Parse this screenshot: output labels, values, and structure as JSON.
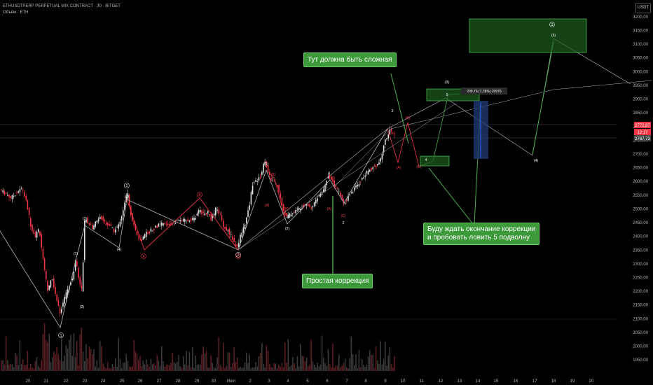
{
  "header": {
    "symbol_line": "ETHUSDTPERP PERPETUAL MIX CONTRACT · 30 · BITGET",
    "volume_line": "Объём · ETH",
    "currency_button": "USDT"
  },
  "price_labels": {
    "upper": "2772,87",
    "middle": "12:17",
    "lower": "2767,73"
  },
  "measure_label": "209,76 (7,78%) 20976",
  "callouts": {
    "complex": "Тут должна быть сложная",
    "simple": "Простая коррекция",
    "wait": [
      "Буду ждать окончание коррекции",
      "и пробовать ловить 5 подволну"
    ]
  },
  "wave_labels": [
    {
      "text": "1",
      "circled": true,
      "color": "#ffffff"
    },
    {
      "text": "(5)",
      "circled": false,
      "color": "#ffffff"
    },
    {
      "text": "(3)",
      "circled": false,
      "color": "#ffffff"
    },
    {
      "text": "(1)",
      "circled": false,
      "color": "#ffffff"
    },
    {
      "text": "(4)",
      "circled": false,
      "color": "#ffffff"
    },
    {
      "text": "(2)",
      "circled": false,
      "color": "#ffffff"
    },
    {
      "text": "1",
      "circled": true,
      "color": "#ffffff"
    },
    {
      "text": "2",
      "circled": true,
      "color": "#ffffff"
    },
    {
      "text": "(1)",
      "circled": false,
      "color": "#ffffff"
    },
    {
      "text": "(2)",
      "circled": false,
      "color": "#ffffff"
    },
    {
      "text": "1",
      "circled": false,
      "color": "#ffffff"
    },
    {
      "text": "2",
      "circled": false,
      "color": "#ffffff"
    },
    {
      "text": "3",
      "circled": false,
      "color": "#ffffff"
    },
    {
      "text": "(3)",
      "circled": false,
      "color": "#ffffff"
    },
    {
      "text": "5",
      "circled": false,
      "color": "#ffffff"
    },
    {
      "text": "4",
      "circled": false,
      "color": "#ffffff"
    },
    {
      "text": "(4)",
      "circled": false,
      "color": "#ffffff"
    },
    {
      "text": "3",
      "circled": true,
      "color": "#ffffff"
    },
    {
      "text": "(5)",
      "circled": false,
      "color": "#ffffff"
    },
    {
      "text": "B",
      "circled": true,
      "color": "#f23645"
    },
    {
      "text": "A",
      "circled": true,
      "color": "#f23645"
    },
    {
      "text": "C",
      "circled": true,
      "color": "#f23645"
    },
    {
      "text": "(B)",
      "circled": false,
      "color": "#f23645"
    },
    {
      "text": "(A)",
      "circled": false,
      "color": "#f23645"
    },
    {
      "text": "(C)",
      "circled": false,
      "color": "#f23645"
    },
    {
      "text": "(B)",
      "circled": false,
      "color": "#f23645"
    },
    {
      "text": "(A)",
      "circled": false,
      "color": "#f23645"
    },
    {
      "text": "(C)",
      "circled": false,
      "color": "#f23645"
    },
    {
      "text": "(B)",
      "circled": false,
      "color": "#f23645"
    },
    {
      "text": "(A)",
      "circled": false,
      "color": "#f23645"
    },
    {
      "text": "(C)",
      "circled": false,
      "color": "#f23645"
    }
  ],
  "colors": {
    "background": "#000000",
    "candle_up": "#e0e0e0",
    "candle_down": "#f23645",
    "wave_line": "#b2b5be",
    "abc_line": "#f23645",
    "projection": "#4caf50",
    "zone_fill": "#1f5f1f",
    "measure_fill": "#1e3a6e",
    "callout_bg": "#3d9a3b"
  },
  "chart_data": {
    "type": "candlestick",
    "y_axis": {
      "ylim": [
        1925,
        3225
      ],
      "tick_values": [
        1950,
        2000,
        2050,
        2100,
        2150,
        2200,
        2250,
        2300,
        2350,
        2400,
        2450,
        2500,
        2550,
        2600,
        2650,
        2700,
        2750,
        2800,
        2850,
        2900,
        2950,
        3000,
        3050,
        3100,
        3150,
        3200
      ],
      "tick_labels": [
        "1950,00",
        "2000,00",
        "2050,00",
        "2100,00",
        "2150,00",
        "2200,00",
        "2250,00",
        "2300,00",
        "2350,00",
        "2400,00",
        "2450,00",
        "2500,00",
        "2550,00",
        "2600,00",
        "2650,00",
        "2700,00",
        "2750,00",
        "2800,00",
        "2850,00",
        "2900,00",
        "2950,00",
        "3000,00",
        "3050,00",
        "3100,00",
        "3150,00",
        "3200,00"
      ]
    },
    "x_axis": {
      "tick_labels": [
        "20",
        "21",
        "22",
        "23",
        "24",
        "25",
        "26",
        "27",
        "28",
        "29",
        "30",
        "Июл",
        "2",
        "3",
        "4",
        "5",
        "6",
        "7",
        "8",
        "9",
        "10",
        "11",
        "12",
        "13",
        "14",
        "15",
        "16",
        "17",
        "18",
        "19",
        "20",
        "21"
      ]
    },
    "price_path": [
      [
        0,
        2570
      ],
      [
        8,
        2555
      ],
      [
        16,
        2540
      ],
      [
        24,
        2560
      ],
      [
        32,
        2575
      ],
      [
        38,
        2520
      ],
      [
        44,
        2440
      ],
      [
        50,
        2400
      ],
      [
        56,
        2430
      ],
      [
        62,
        2300
      ],
      [
        68,
        2200
      ],
      [
        74,
        2250
      ],
      [
        80,
        2180
      ],
      [
        86,
        2120
      ],
      [
        91,
        2170
      ],
      [
        96,
        2200
      ],
      [
        100,
        2230
      ],
      [
        104,
        2250
      ],
      [
        108,
        2320
      ],
      [
        113,
        2240
      ],
      [
        117,
        2200
      ],
      [
        121,
        2470
      ],
      [
        126,
        2450
      ],
      [
        132,
        2430
      ],
      [
        138,
        2460
      ],
      [
        144,
        2470
      ],
      [
        150,
        2450
      ],
      [
        156,
        2440
      ],
      [
        162,
        2420
      ],
      [
        168,
        2430
      ],
      [
        174,
        2480
      ],
      [
        178,
        2520
      ],
      [
        182,
        2560
      ],
      [
        186,
        2490
      ],
      [
        190,
        2450
      ],
      [
        196,
        2400
      ],
      [
        202,
        2380
      ],
      [
        208,
        2410
      ],
      [
        214,
        2420
      ],
      [
        220,
        2430
      ],
      [
        226,
        2440
      ],
      [
        232,
        2445
      ],
      [
        240,
        2440
      ],
      [
        248,
        2450
      ],
      [
        256,
        2460
      ],
      [
        264,
        2455
      ],
      [
        272,
        2460
      ],
      [
        280,
        2470
      ],
      [
        285,
        2500
      ],
      [
        290,
        2480
      ],
      [
        296,
        2490
      ],
      [
        302,
        2460
      ],
      [
        308,
        2500
      ],
      [
        314,
        2480
      ],
      [
        320,
        2430
      ],
      [
        326,
        2420
      ],
      [
        332,
        2390
      ],
      [
        338,
        2355
      ],
      [
        344,
        2410
      ],
      [
        350,
        2450
      ],
      [
        356,
        2510
      ],
      [
        360,
        2590
      ],
      [
        366,
        2600
      ],
      [
        372,
        2620
      ],
      [
        378,
        2680
      ],
      [
        384,
        2620
      ],
      [
        390,
        2600
      ],
      [
        396,
        2580
      ],
      [
        402,
        2520
      ],
      [
        408,
        2470
      ],
      [
        414,
        2480
      ],
      [
        420,
        2490
      ],
      [
        426,
        2500
      ],
      [
        432,
        2510
      ],
      [
        438,
        2520
      ],
      [
        444,
        2500
      ],
      [
        450,
        2530
      ],
      [
        456,
        2550
      ],
      [
        462,
        2570
      ],
      [
        468,
        2620
      ],
      [
        474,
        2610
      ],
      [
        478,
        2580
      ],
      [
        484,
        2560
      ],
      [
        490,
        2520
      ],
      [
        496,
        2540
      ],
      [
        502,
        2560
      ],
      [
        508,
        2580
      ],
      [
        514,
        2600
      ],
      [
        520,
        2620
      ],
      [
        526,
        2640
      ],
      [
        532,
        2650
      ],
      [
        538,
        2660
      ],
      [
        544,
        2680
      ],
      [
        548,
        2740
      ],
      [
        552,
        2760
      ],
      [
        556,
        2790
      ],
      [
        560,
        2770
      ],
      [
        564,
        2778
      ]
    ],
    "price_tags": [
      2772.87,
      2767.73
    ],
    "measure_arrow": {
      "from": 2700,
      "to": 2900,
      "change": "209,76 (7,78%)"
    },
    "targets": {
      "zone_3_top": 3200,
      "zone_3_bottom": 3080,
      "zone_(3)_top": 2925,
      "zone_(3)_bottom": 2880,
      "zone_4_top": 2710,
      "zone_4_bottom": 2670
    }
  }
}
